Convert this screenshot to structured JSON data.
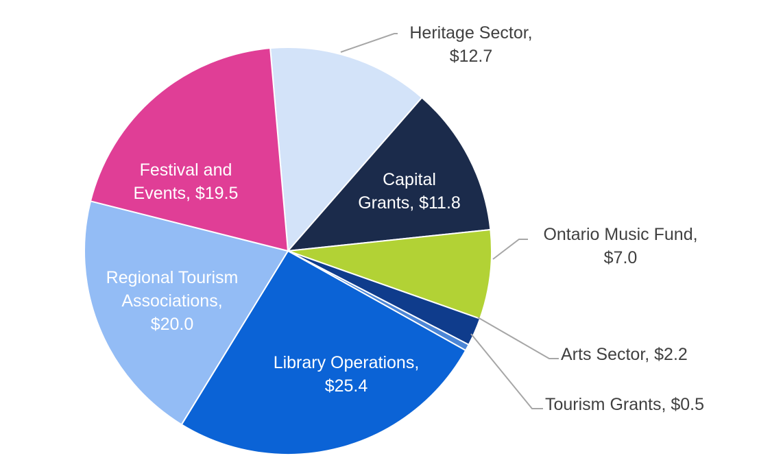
{
  "chart_data": {
    "type": "pie",
    "title": "",
    "start_angle_deg": -5,
    "direction": "clockwise",
    "legend": "none",
    "slices": [
      {
        "label_lines": [
          "Heritage Sector,",
          "$12.7"
        ],
        "value": 12.7,
        "color": "#d3e3f9",
        "label_pos": "outside"
      },
      {
        "label_lines": [
          "Capital",
          "Grants, $11.8"
        ],
        "value": 11.8,
        "color": "#1b2b4b",
        "label_pos": "inside"
      },
      {
        "label_lines": [
          "Ontario Music Fund,",
          "$7.0"
        ],
        "value": 7.0,
        "color": "#b2d235",
        "label_pos": "outside"
      },
      {
        "label_lines": [
          "Arts Sector, $2.2"
        ],
        "value": 2.2,
        "color": "#0f3c8c",
        "label_pos": "outside"
      },
      {
        "label_lines": [
          "Tourism Grants, $0.5"
        ],
        "value": 0.5,
        "color": "#4c86d6",
        "label_pos": "outside"
      },
      {
        "label_lines": [
          "Library Operations,",
          "$25.4"
        ],
        "value": 25.4,
        "color": "#0b63d6",
        "label_pos": "inside"
      },
      {
        "label_lines": [
          "Regional Tourism",
          "Associations,",
          "$20.0"
        ],
        "value": 20.0,
        "color": "#93bcf5",
        "label_pos": "inside"
      },
      {
        "label_lines": [
          "Festival and",
          "Events, $19.5"
        ],
        "value": 19.5,
        "color": "#e03e96",
        "label_pos": "inside"
      }
    ]
  }
}
